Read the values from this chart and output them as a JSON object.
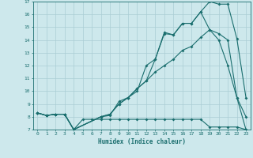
{
  "xlabel": "Humidex (Indice chaleur)",
  "xlim": [
    -0.5,
    23.5
  ],
  "ylim": [
    7,
    17
  ],
  "xticks": [
    0,
    1,
    2,
    3,
    4,
    5,
    6,
    7,
    8,
    9,
    10,
    11,
    12,
    13,
    14,
    15,
    16,
    17,
    18,
    19,
    20,
    21,
    22,
    23
  ],
  "yticks": [
    7,
    8,
    9,
    10,
    11,
    12,
    13,
    14,
    15,
    16,
    17
  ],
  "bg_color": "#cde8ec",
  "grid_color": "#aacdd4",
  "line_color": "#1a6e6e",
  "series": [
    {
      "x": [
        0,
        1,
        2,
        3,
        4,
        7,
        8,
        9,
        10,
        11,
        12,
        13,
        14,
        15,
        16,
        17,
        18,
        19,
        20,
        21,
        22,
        23
      ],
      "y": [
        8.3,
        8.1,
        8.2,
        8.2,
        7.0,
        8.0,
        8.1,
        9.2,
        9.5,
        10.0,
        12.0,
        12.5,
        14.6,
        14.4,
        15.3,
        15.3,
        16.2,
        17.0,
        16.8,
        16.8,
        14.1,
        9.5
      ]
    },
    {
      "x": [
        0,
        1,
        2,
        3,
        4,
        5,
        6,
        7,
        8,
        9,
        10,
        11,
        12,
        13,
        14,
        15,
        16,
        17,
        18,
        19,
        20,
        21,
        22,
        23
      ],
      "y": [
        8.3,
        8.1,
        8.2,
        8.2,
        7.0,
        7.8,
        7.8,
        7.8,
        7.8,
        7.8,
        7.8,
        7.8,
        7.8,
        7.8,
        7.8,
        7.8,
        7.8,
        7.8,
        7.8,
        7.2,
        7.2,
        7.2,
        7.2,
        7.0
      ]
    },
    {
      "x": [
        0,
        1,
        2,
        3,
        4,
        7,
        8,
        9,
        10,
        11,
        12,
        13,
        14,
        15,
        16,
        17,
        18,
        19,
        20,
        21,
        22,
        23
      ],
      "y": [
        8.3,
        8.1,
        8.2,
        8.2,
        7.0,
        8.0,
        8.2,
        9.0,
        9.5,
        10.2,
        10.8,
        11.5,
        12.0,
        12.5,
        13.2,
        13.5,
        14.2,
        14.8,
        14.5,
        14.0,
        9.5,
        7.0
      ]
    },
    {
      "x": [
        0,
        1,
        2,
        3,
        4,
        7,
        8,
        9,
        10,
        11,
        12,
        13,
        14,
        15,
        16,
        17,
        18,
        19,
        20,
        21,
        22,
        23
      ],
      "y": [
        8.3,
        8.1,
        8.2,
        8.2,
        7.0,
        8.0,
        8.2,
        9.0,
        9.5,
        10.2,
        10.8,
        12.5,
        14.5,
        14.4,
        15.3,
        15.3,
        16.2,
        14.8,
        14.0,
        12.0,
        9.5,
        8.0
      ]
    }
  ]
}
